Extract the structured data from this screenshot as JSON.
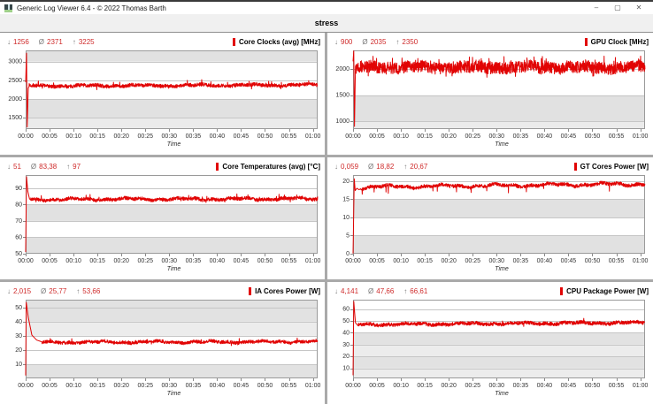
{
  "window": {
    "title": "Generic Log Viewer 6.4 - © 2022 Thomas Barth",
    "controls": {
      "minimize": "–",
      "maximize": "▢",
      "close": "✕"
    }
  },
  "header": {
    "title": "stress"
  },
  "stat_icons": {
    "min": "↓",
    "avg": "Ø",
    "max": "↑"
  },
  "colors": {
    "series": "#e10404",
    "stat_value": "#cf2b2b",
    "title_marker": "#e10404"
  },
  "x_axis": {
    "label": "Time",
    "max": 61,
    "ticks": [
      {
        "v": 0,
        "label": "00:00"
      },
      {
        "v": 5,
        "label": "00:05"
      },
      {
        "v": 10,
        "label": "00:10"
      },
      {
        "v": 15,
        "label": "00:15"
      },
      {
        "v": 20,
        "label": "00:20"
      },
      {
        "v": 25,
        "label": "00:25"
      },
      {
        "v": 30,
        "label": "00:30"
      },
      {
        "v": 35,
        "label": "00:35"
      },
      {
        "v": 40,
        "label": "00:40"
      },
      {
        "v": 45,
        "label": "00:45"
      },
      {
        "v": 50,
        "label": "00:50"
      },
      {
        "v": 55,
        "label": "00:55"
      },
      {
        "v": 60,
        "label": "01:00"
      }
    ]
  },
  "chart_data": [
    {
      "id": "core-clocks",
      "type": "line",
      "title": "Core Clocks (avg) [MHz]",
      "stats": {
        "min": "1256",
        "avg": "2371",
        "max": "3225"
      },
      "ylim": [
        1200,
        3300
      ],
      "yticks": [
        {
          "v": 1500,
          "label": "1500"
        },
        {
          "v": 2000,
          "label": "2000"
        },
        {
          "v": 2500,
          "label": "2500"
        },
        {
          "v": 3000,
          "label": "3000"
        }
      ],
      "bands": [
        {
          "from": 3000,
          "to": 3300,
          "color": "#e1e1e1"
        },
        {
          "from": 1500,
          "to": 2000,
          "color": "#e1e1e1"
        },
        {
          "from": 1200,
          "to": 1500,
          "color": "#ebebeb"
        }
      ],
      "series": {
        "anchors": [
          [
            0,
            2450
          ],
          [
            0.18,
            3225
          ],
          [
            0.32,
            1256
          ],
          [
            0.55,
            2300
          ]
        ],
        "steady": {
          "from": 0.7,
          "base": 2350,
          "trend": 30,
          "wander": 28,
          "noise": 48,
          "spike": {
            "prob": 0.025,
            "amp": 140
          },
          "clamp": [
            2245,
            2585
          ]
        },
        "seed": 7
      }
    },
    {
      "id": "gpu-clock",
      "type": "line",
      "title": "GPU Clock [MHz]",
      "stats": {
        "min": "900",
        "avg": "2035",
        "max": "2350"
      },
      "ylim": [
        850,
        2360
      ],
      "yticks": [
        {
          "v": 1000,
          "label": "1000"
        },
        {
          "v": 1500,
          "label": "1500"
        },
        {
          "v": 2000,
          "label": "2000"
        }
      ],
      "bands": [
        {
          "from": 1000,
          "to": 1500,
          "color": "#e1e1e1"
        },
        {
          "from": 850,
          "to": 1000,
          "color": "#ebebeb"
        }
      ],
      "series": {
        "anchors": [
          [
            0,
            2150
          ],
          [
            0.15,
            2350
          ],
          [
            0.3,
            900
          ],
          [
            0.5,
            2050
          ]
        ],
        "steady": {
          "from": 0.6,
          "base": 2035,
          "trend": 0,
          "wander": 35,
          "noise": 115,
          "spike": {
            "prob": 0.05,
            "amp": 150
          },
          "clamp": [
            1845,
            2315
          ]
        },
        "seed": 13
      }
    },
    {
      "id": "core-temperatures",
      "type": "line",
      "title": "Core Temperatures (avg) [°C]",
      "stats": {
        "min": "51",
        "avg": "83,38",
        "max": "97"
      },
      "ylim": [
        50,
        98
      ],
      "yticks": [
        {
          "v": 50,
          "label": "50"
        },
        {
          "v": 60,
          "label": "60"
        },
        {
          "v": 70,
          "label": "70"
        },
        {
          "v": 80,
          "label": "80"
        },
        {
          "v": 90,
          "label": "90"
        }
      ],
      "bands": [
        {
          "from": 70,
          "to": 80,
          "color": "#e1e1e1"
        },
        {
          "from": 50,
          "to": 60,
          "color": "#e1e1e1"
        }
      ],
      "series": {
        "anchors": [
          [
            0,
            51
          ],
          [
            0.18,
            97
          ],
          [
            0.45,
            88
          ],
          [
            0.8,
            83.5
          ]
        ],
        "steady": {
          "from": 0.95,
          "base": 83.1,
          "trend": 0.4,
          "wander": 0.8,
          "noise": 1.05,
          "spike": {
            "prob": 0.025,
            "amp": 2.3
          },
          "clamp": [
            81.2,
            87.6
          ]
        },
        "seed": 21
      }
    },
    {
      "id": "gt-cores-power",
      "type": "line",
      "title": "GT Cores Power [W]",
      "stats": {
        "min": "0,059",
        "avg": "18,82",
        "max": "20,67"
      },
      "ylim": [
        0,
        21.7
      ],
      "yticks": [
        {
          "v": 0,
          "label": "0"
        },
        {
          "v": 5,
          "label": "5"
        },
        {
          "v": 10,
          "label": "10"
        },
        {
          "v": 15,
          "label": "15"
        },
        {
          "v": 20,
          "label": "20"
        }
      ],
      "bands": [
        {
          "from": 10,
          "to": 15,
          "color": "#e1e1e1"
        },
        {
          "from": 0,
          "to": 5,
          "color": "#e1e1e1"
        }
      ],
      "series": {
        "anchors": [
          [
            0,
            0.059
          ],
          [
            0.25,
            20.67
          ],
          [
            0.45,
            17.4
          ],
          [
            0.8,
            18.05
          ],
          [
            1.25,
            17.65
          ],
          [
            1.6,
            17.9
          ]
        ],
        "steady": {
          "from": 1.7,
          "base": 18.35,
          "trend": 0.9,
          "wander": 0.5,
          "noise": 0.48,
          "spike": {
            "prob": 0.012,
            "amp": -2.1
          },
          "clamp": [
            15.9,
            20.35
          ]
        },
        "seed": 29
      }
    },
    {
      "id": "ia-cores-power",
      "type": "line",
      "title": "IA Cores Power [W]",
      "stats": {
        "min": "2,015",
        "avg": "25,77",
        "max": "53,66"
      },
      "ylim": [
        0,
        55.5
      ],
      "yticks": [
        {
          "v": 10,
          "label": "10"
        },
        {
          "v": 20,
          "label": "20"
        },
        {
          "v": 30,
          "label": "30"
        },
        {
          "v": 40,
          "label": "40"
        },
        {
          "v": 50,
          "label": "50"
        }
      ],
      "bands": [
        {
          "from": 40,
          "to": 55.5,
          "color": "#e2e2e2"
        },
        {
          "from": 30,
          "to": 40,
          "color": "#ececec"
        },
        {
          "from": 0,
          "to": 10,
          "color": "#e2e2e2"
        }
      ],
      "series": {
        "anchors": [
          [
            0,
            2.015
          ],
          [
            0.12,
            53.66
          ],
          [
            0.55,
            43
          ],
          [
            1.3,
            30.5
          ],
          [
            2.3,
            27
          ],
          [
            3.3,
            25.9
          ]
        ],
        "steady": {
          "from": 3.4,
          "base": 25.4,
          "trend": 0.5,
          "wander": 0.8,
          "noise": 1.15,
          "spike": {
            "prob": 0.02,
            "amp": 2.4
          },
          "clamp": [
            22.6,
            29.6
          ]
        },
        "seed": 37
      }
    },
    {
      "id": "cpu-package-power",
      "type": "line",
      "title": "CPU Package Power [W]",
      "stats": {
        "min": "4,141",
        "avg": "47,66",
        "max": "66,61"
      },
      "ylim": [
        1.5,
        68
      ],
      "yticks": [
        {
          "v": 10,
          "label": "10"
        },
        {
          "v": 20,
          "label": "20"
        },
        {
          "v": 30,
          "label": "30"
        },
        {
          "v": 40,
          "label": "40"
        },
        {
          "v": 50,
          "label": "50"
        },
        {
          "v": 60,
          "label": "60"
        }
      ],
      "bands": [
        {
          "from": 30,
          "to": 40,
          "color": "#e2e2e2"
        },
        {
          "from": 20,
          "to": 30,
          "color": "#ececec"
        },
        {
          "from": 10,
          "to": 20,
          "color": "#e2e2e2"
        },
        {
          "from": 1.5,
          "to": 10,
          "color": "#ececec"
        }
      ],
      "series": {
        "anchors": [
          [
            0,
            4.141
          ],
          [
            0.15,
            66.61
          ],
          [
            0.5,
            48.5
          ],
          [
            1.0,
            46.2
          ]
        ],
        "steady": {
          "from": 1.1,
          "base": 47.0,
          "trend": 1.6,
          "wander": 0.9,
          "noise": 1.5,
          "spike": {
            "prob": 0.015,
            "amp": 2.6
          },
          "clamp": [
            43.6,
            53.6
          ]
        },
        "seed": 45
      }
    }
  ]
}
